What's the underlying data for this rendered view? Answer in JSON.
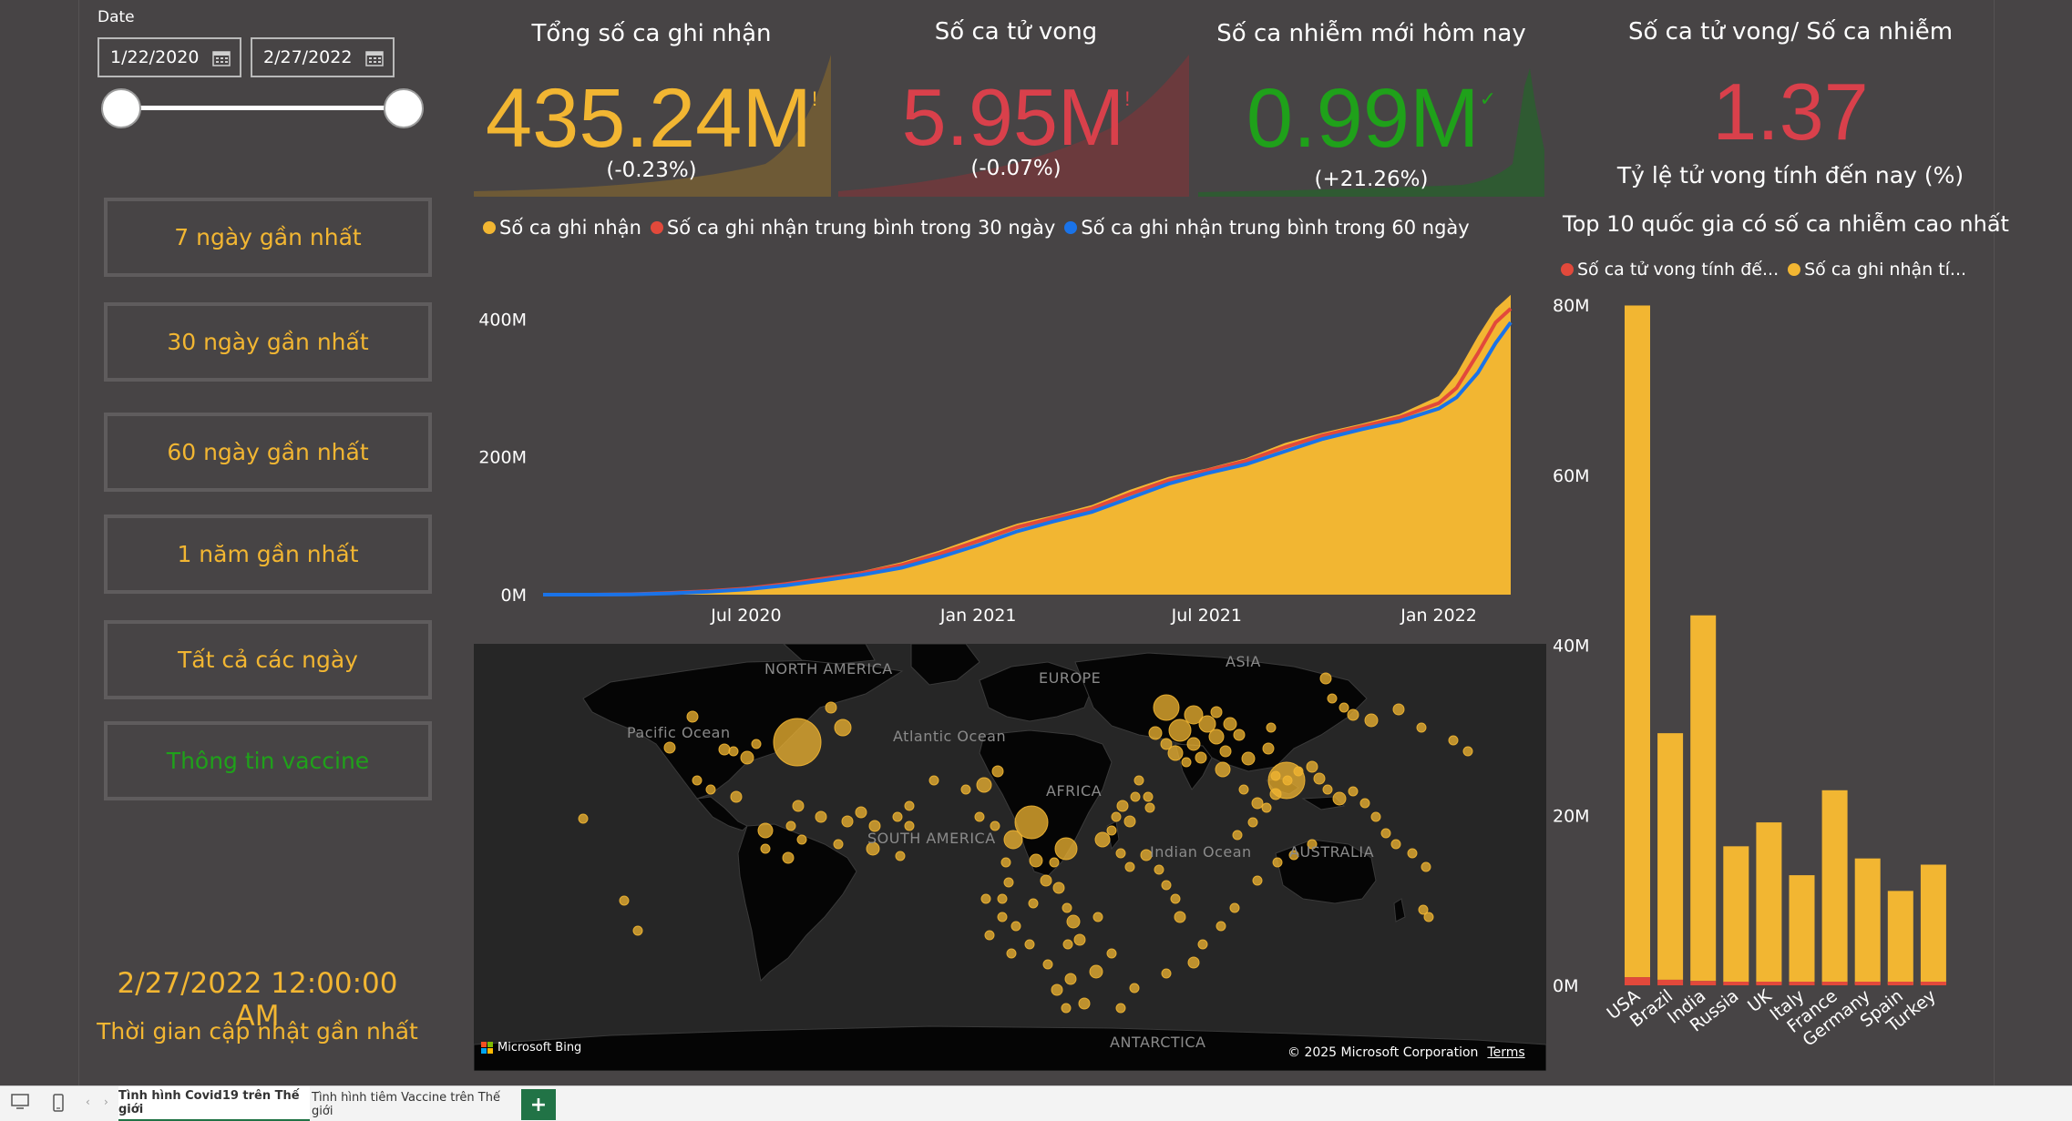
{
  "slicer": {
    "label": "Date",
    "start_date": "1/22/2020",
    "end_date": "2/27/2022",
    "range_fraction": [
      0,
      1
    ]
  },
  "nav": {
    "buttons": [
      {
        "label": "7 ngày gần nhất"
      },
      {
        "label": "30 ngày gần nhất"
      },
      {
        "label": "60 ngày gần nhất"
      },
      {
        "label": "1 năm gần nhất"
      },
      {
        "label": "Tất cả các ngày"
      },
      {
        "label": "Thông tin vaccine"
      }
    ]
  },
  "update": {
    "timestamp": "2/27/2022 12:00:00 AM",
    "label": "Thời gian cập nhật gần nhất"
  },
  "kpis": [
    {
      "title": "Tổng số ca ghi nhận",
      "value": "435.24M",
      "delta": "(-0.23%)",
      "color": "#f2b632",
      "indicator": "!"
    },
    {
      "title": "Số ca tử vong",
      "value": "5.95M",
      "delta": "(-0.07%)",
      "color": "#d9404b",
      "indicator": "!"
    },
    {
      "title": "Số ca nhiễm mới hôm nay",
      "value": "0.99M",
      "delta": "(+21.26%)",
      "color": "#1fa11a",
      "indicator": "✓"
    },
    {
      "title": "Số ca tử vong/ Số ca nhiễm",
      "value": "1.37",
      "delta": "Tỷ lệ tử vong tính đến nay (%)",
      "color": "#d9404b",
      "indicator": ""
    }
  ],
  "colors": {
    "background": "#474445",
    "accent_yellow": "#f2b632",
    "accent_red": "#e2493b",
    "accent_blue": "#1a73e8",
    "accent_green": "#1fa11a"
  },
  "area_legend": [
    {
      "label": "Số ca ghi nhận",
      "color": "#f2b632"
    },
    {
      "label": "Số ca ghi nhận trung bình trong 30 ngày",
      "color": "#e2493b"
    },
    {
      "label": "Số ca ghi nhận trung bình trong 60 ngày",
      "color": "#1a73e8"
    }
  ],
  "bar_title": "Top 10 quốc gia có số ca nhiễm cao nhất",
  "bar_legend": [
    {
      "label": "Số ca tử vong tính đế...",
      "color": "#e2493b"
    },
    {
      "label": "Số ca ghi nhận tí...",
      "color": "#f2b632"
    }
  ],
  "map": {
    "labels": [
      "NORTH AMERICA",
      "Pacific Ocean",
      "Atlantic Ocean",
      "EUROPE",
      "ASIA",
      "AFRICA",
      "SOUTH AMERICA",
      "Indian Ocean",
      "AUSTRALIA",
      "ANTARCTICA"
    ],
    "attribution": "Microsoft Bing",
    "copyright": "© 2025 Microsoft Corporation",
    "terms": "Terms"
  },
  "tabs": {
    "items": [
      "Tình hình Covid19 trên Thế giới",
      "Tình hình tiêm Vaccine trên Thế giới"
    ],
    "active": 0,
    "add": "+"
  },
  "chart_data": [
    {
      "type": "area",
      "title": "",
      "x_ticks": [
        "Jul 2020",
        "Jan 2021",
        "Jul 2021",
        "Jan 2022"
      ],
      "y_ticks": [
        "0M",
        "200M",
        "400M"
      ],
      "ylim": [
        0,
        440
      ],
      "y_unit": "M",
      "x": [
        "2020-01-22",
        "2020-03-01",
        "2020-04-01",
        "2020-05-01",
        "2020-06-01",
        "2020-07-01",
        "2020-08-01",
        "2020-09-01",
        "2020-10-01",
        "2020-11-01",
        "2020-12-01",
        "2021-01-01",
        "2021-02-01",
        "2021-03-01",
        "2021-04-01",
        "2021-05-01",
        "2021-06-01",
        "2021-07-01",
        "2021-08-01",
        "2021-09-01",
        "2021-10-01",
        "2021-11-01",
        "2021-12-01",
        "2022-01-01",
        "2022-01-15",
        "2022-02-01",
        "2022-02-15",
        "2022-02-27"
      ],
      "series": [
        {
          "name": "Số ca ghi nhận",
          "values": [
            0.0006,
            0.09,
            0.9,
            3.3,
            6.2,
            10.5,
            17.5,
            25.5,
            34.2,
            47,
            64,
            84,
            103,
            115,
            130,
            152,
            171,
            183,
            198,
            220,
            235,
            248,
            262,
            288,
            320,
            375,
            415,
            435
          ]
        },
        {
          "name": "Số ca ghi nhận trung bình trong 30 ngày",
          "values": [
            0.0005,
            0.05,
            0.6,
            2.5,
            5.2,
            9.0,
            15.5,
            23.5,
            31.5,
            43,
            59,
            78,
            98,
            111,
            125,
            146,
            166,
            180,
            194,
            214,
            231,
            244,
            257,
            278,
            300,
            350,
            395,
            415
          ]
        },
        {
          "name": "Số ca ghi nhận trung bình trong 60 ngày",
          "values": [
            0.0004,
            0.04,
            0.4,
            1.9,
            4.3,
            7.6,
            13.4,
            21.0,
            28.8,
            39,
            54,
            72,
            92,
            106,
            120,
            140,
            161,
            176,
            189,
            208,
            226,
            240,
            252,
            270,
            286,
            322,
            365,
            395
          ]
        }
      ]
    },
    {
      "type": "bar",
      "title": "Top 10 quốc gia có số ca nhiễm cao nhất",
      "categories": [
        "USA",
        "Brazil",
        "India",
        "Russia",
        "UK",
        "Italy",
        "France",
        "Germany",
        "Spain",
        "Turkey"
      ],
      "y_ticks": [
        "0M",
        "20M",
        "40M",
        "60M",
        "80M"
      ],
      "ylim": [
        0,
        80
      ],
      "stacked": true,
      "series": [
        {
          "name": "Số ca tử vong tính đế...",
          "values": [
            0.95,
            0.65,
            0.51,
            0.35,
            0.16,
            0.15,
            0.14,
            0.12,
            0.1,
            0.09
          ]
        },
        {
          "name": "Số ca ghi nhận tí...",
          "values": [
            79,
            29,
            43,
            16,
            19,
            12.8,
            22.8,
            14.8,
            11.0,
            14.1
          ]
        }
      ]
    }
  ]
}
